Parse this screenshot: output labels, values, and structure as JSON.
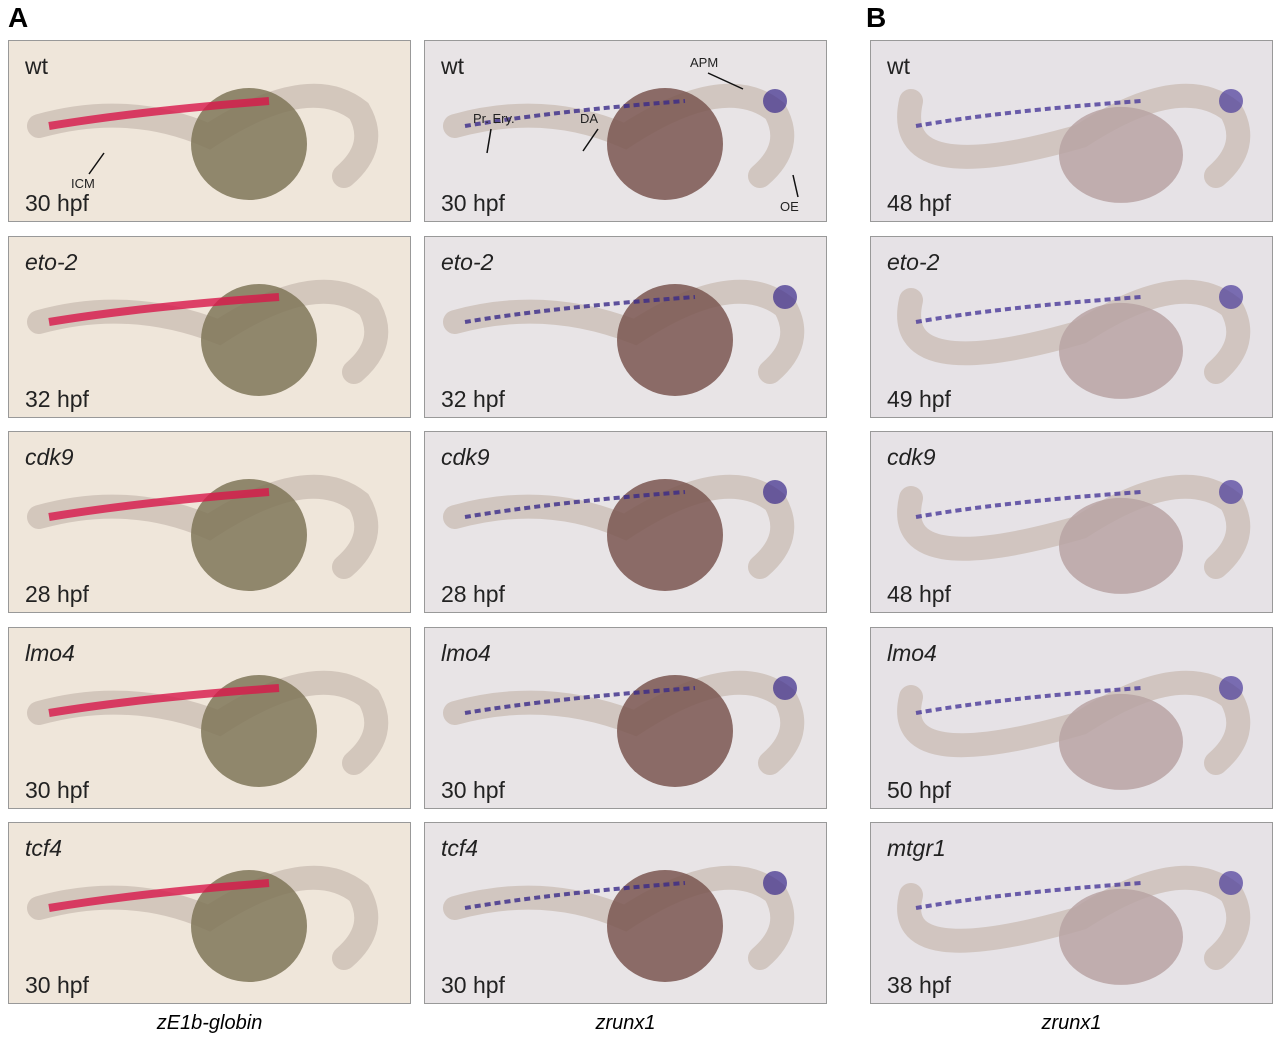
{
  "panel_letters": [
    "A",
    "B"
  ],
  "columns": [
    {
      "caption": "zE1b-globin",
      "panels": [
        {
          "gene": "wt",
          "stage": "30 hpf",
          "annotations": [
            "ICM"
          ]
        },
        {
          "gene": "eto-2",
          "stage": "32 hpf",
          "annotations": []
        },
        {
          "gene": "cdk9",
          "stage": "28 hpf",
          "annotations": []
        },
        {
          "gene": "lmo4",
          "stage": "30 hpf",
          "annotations": []
        },
        {
          "gene": "tcf4",
          "stage": "30 hpf",
          "annotations": []
        }
      ]
    },
    {
      "caption": "zrunx1",
      "panels": [
        {
          "gene": "wt",
          "stage": "30 hpf",
          "annotations": [
            "Pr. Ery.",
            "DA",
            "APM",
            "OE"
          ]
        },
        {
          "gene": "eto-2",
          "stage": "32 hpf",
          "annotations": []
        },
        {
          "gene": "cdk9",
          "stage": "28 hpf",
          "annotations": []
        },
        {
          "gene": "lmo4",
          "stage": "30 hpf",
          "annotations": []
        },
        {
          "gene": "tcf4",
          "stage": "30 hpf",
          "annotations": []
        }
      ]
    },
    {
      "caption": "zrunx1",
      "panels": [
        {
          "gene": "wt",
          "stage": "48 hpf",
          "annotations": []
        },
        {
          "gene": "eto-2",
          "stage": "49 hpf",
          "annotations": []
        },
        {
          "gene": "cdk9",
          "stage": "48 hpf",
          "annotations": []
        },
        {
          "gene": "lmo4",
          "stage": "50 hpf",
          "annotations": []
        },
        {
          "gene": "mtgr1",
          "stage": "38 hpf",
          "annotations": []
        }
      ]
    }
  ]
}
